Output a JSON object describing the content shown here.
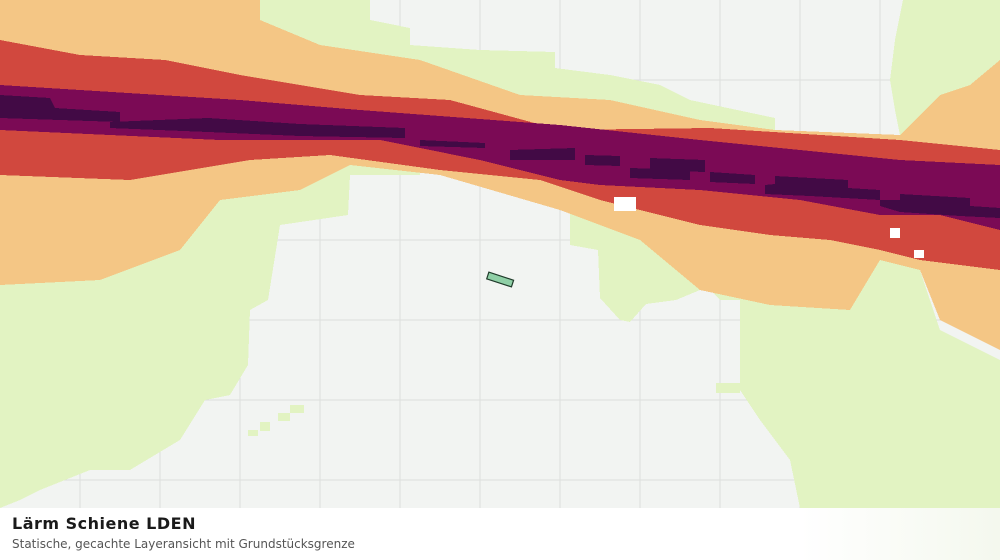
{
  "header": {
    "title": "Lärm Schiene LDEN",
    "subtitle": "Statische, gecachte Layeransicht mit Grundstücksgrenze"
  }
}
